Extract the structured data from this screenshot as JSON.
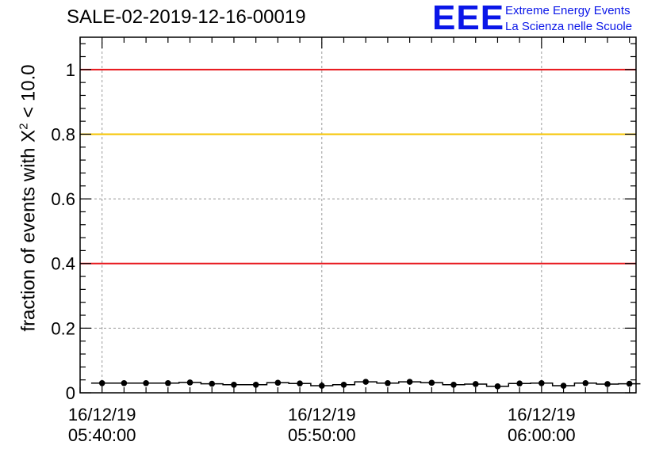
{
  "title": "SALE-02-2019-12-16-00019",
  "logo": {
    "mark": "EEE",
    "line1": "Extreme Energy Events",
    "line2": "La Scienza nelle Scuole",
    "color": "#0a16e8"
  },
  "axis": {
    "ylabel_prefix": "fraction of events with X",
    "ylabel_sup": "2",
    "ylabel_suffix": " < 10.0"
  },
  "chart_data": {
    "type": "line",
    "title": "SALE-02-2019-12-16-00019",
    "ylabel": "fraction of events with X^2 < 10.0",
    "xlabel": "",
    "x_range_minutes": [
      -1,
      24.3
    ],
    "ylim": [
      0,
      1.1
    ],
    "x_ticks": [
      {
        "minute": 0,
        "date": "16/12/19",
        "time": "05:40:00"
      },
      {
        "minute": 10,
        "date": "16/12/19",
        "time": "05:50:00"
      },
      {
        "minute": 20,
        "date": "16/12/19",
        "time": "06:00:00"
      }
    ],
    "y_ticks": [
      0,
      0.2,
      0.4,
      0.6,
      0.8,
      1
    ],
    "y_tick_labels": [
      "0",
      "0.2",
      "0.4",
      "0.6",
      "0.8",
      "1"
    ],
    "grid": true,
    "reference_lines": [
      {
        "y": 1.0,
        "color": "#e8161b"
      },
      {
        "y": 0.8,
        "color": "#f5c400"
      },
      {
        "y": 0.4,
        "color": "#e8161b"
      }
    ],
    "series": [
      {
        "x_minutes": [
          0,
          1,
          2,
          3,
          4,
          5,
          6,
          7,
          8,
          9,
          10,
          11,
          12,
          13,
          14,
          15,
          16,
          17,
          18,
          19,
          20,
          21,
          22,
          23,
          24
        ],
        "values": [
          0.03,
          0.03,
          0.03,
          0.03,
          0.032,
          0.028,
          0.025,
          0.025,
          0.031,
          0.029,
          0.022,
          0.025,
          0.034,
          0.03,
          0.034,
          0.031,
          0.025,
          0.027,
          0.02,
          0.029,
          0.03,
          0.022,
          0.03,
          0.027,
          0.028
        ],
        "color": "#000000"
      }
    ]
  }
}
